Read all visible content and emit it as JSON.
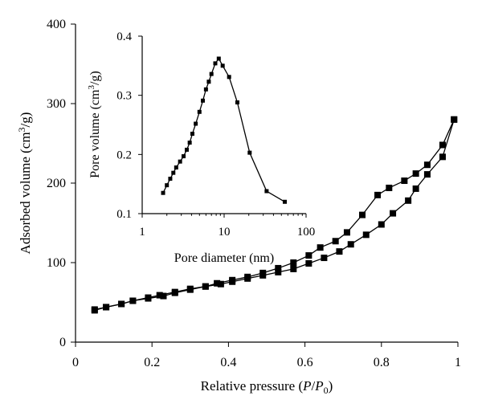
{
  "chart_data": [
    {
      "type": "line",
      "title": "",
      "xlabel": "Relative pressure (P/P0)",
      "xlabel_main": "Relative pressure (",
      "xlabel_var_P": "P",
      "xlabel_slash": "/",
      "xlabel_var_P0": "P",
      "xlabel_sub": "0",
      "xlabel_close": ")",
      "ylabel": "Adsorbed volume (cm3/g)",
      "ylabel_prefix": "Adsorbed volume (cm",
      "ylabel_sup": "3",
      "ylabel_suffix": "/g)",
      "xlim": [
        0,
        1
      ],
      "ylim": [
        0,
        400
      ],
      "xticks": [
        0,
        0.2,
        0.4,
        0.6,
        0.8,
        1
      ],
      "xtick_labels": [
        "0",
        "0.2",
        "0.4",
        "0.6",
        "0.8",
        "1"
      ],
      "yticks": [
        0,
        100,
        200,
        300,
        400
      ],
      "ytick_labels": [
        "0",
        "100",
        "200",
        "300",
        "400"
      ],
      "grid": false,
      "legend": "none",
      "marker": "square",
      "series": [
        {
          "x": [
            0.05,
            0.08,
            0.12,
            0.15,
            0.19,
            0.23,
            0.26,
            0.3,
            0.34,
            0.38,
            0.41,
            0.45,
            0.49,
            0.53,
            0.57,
            0.61,
            0.65,
            0.69,
            0.72,
            0.76,
            0.8,
            0.83,
            0.87,
            0.89,
            0.92,
            0.96,
            0.99
          ],
          "y": [
            40,
            44,
            48,
            52,
            55,
            58,
            62,
            66,
            70,
            73,
            76,
            80,
            84,
            88,
            92,
            99,
            106,
            114,
            123,
            135,
            148,
            162,
            178,
            193,
            211,
            233,
            280
          ]
        },
        {
          "x": [
            0.99,
            0.96,
            0.92,
            0.89,
            0.86,
            0.82,
            0.79,
            0.75,
            0.71,
            0.68,
            0.64,
            0.61,
            0.57,
            0.53,
            0.49,
            0.45,
            0.41,
            0.37,
            0.34,
            0.3,
            0.26,
            0.22,
            0.19,
            0.15,
            0.12,
            0.08,
            0.05
          ],
          "y": [
            280,
            248,
            223,
            212,
            203,
            194,
            185,
            160,
            138,
            127,
            119,
            109,
            100,
            93,
            87,
            82,
            78,
            74,
            70,
            67,
            63,
            59,
            56,
            52,
            48,
            44,
            41
          ]
        }
      ]
    },
    {
      "type": "line",
      "title": "",
      "xlabel": "Pore diameter (nm)",
      "ylabel": "Pore volume (cm3/g)",
      "ylabel_prefix": "Pore volume (cm",
      "ylabel_sup": "3",
      "ylabel_suffix": "/g)",
      "xscale": "log",
      "xlim": [
        1,
        100
      ],
      "ylim": [
        0.1,
        0.4
      ],
      "xticks": [
        1,
        10,
        100
      ],
      "xtick_labels": [
        "1",
        "10",
        "100"
      ],
      "yticks": [
        0.1,
        0.2,
        0.3,
        0.4
      ],
      "ytick_labels": [
        "0.1",
        "0.2",
        "0.3",
        "0.4"
      ],
      "grid": false,
      "legend": "none",
      "marker": "square",
      "series": [
        {
          "x": [
            1.8,
            2.0,
            2.2,
            2.4,
            2.6,
            2.9,
            3.2,
            3.5,
            3.8,
            4.1,
            4.5,
            5.0,
            5.5,
            6.0,
            6.5,
            7.0,
            7.8,
            8.6,
            9.6,
            11.5,
            14.5,
            20.5,
            33.0,
            55.0
          ],
          "y": [
            0.135,
            0.148,
            0.159,
            0.169,
            0.178,
            0.188,
            0.197,
            0.208,
            0.22,
            0.235,
            0.252,
            0.272,
            0.291,
            0.31,
            0.323,
            0.336,
            0.354,
            0.362,
            0.35,
            0.331,
            0.288,
            0.203,
            0.138,
            0.12
          ]
        }
      ]
    }
  ]
}
